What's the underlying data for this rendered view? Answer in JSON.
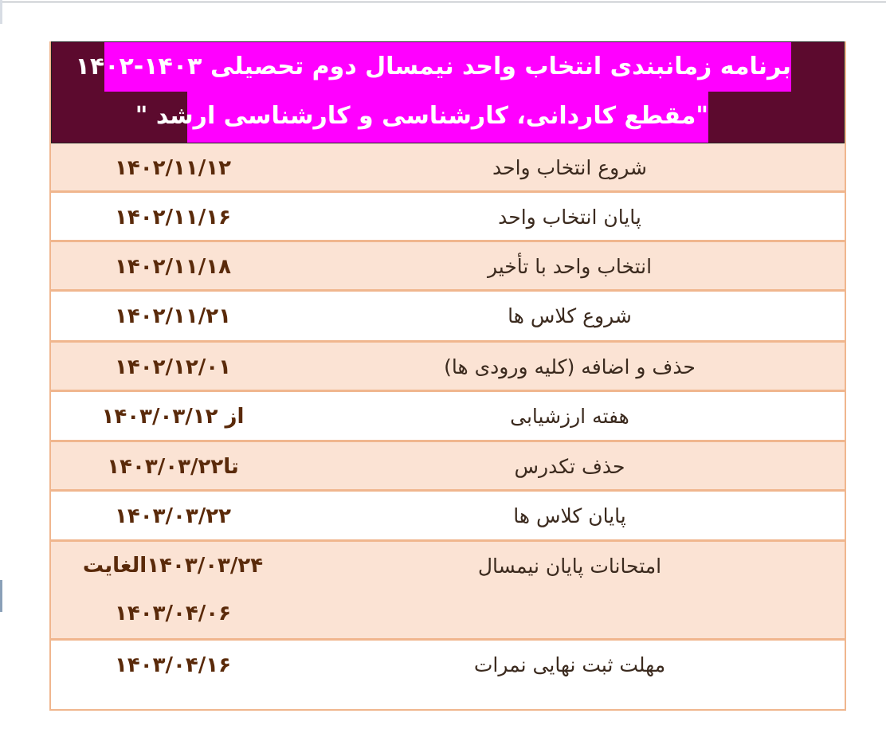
{
  "header": {
    "line1": "برنامه زمانبندی انتخاب واحد نیمسال دوم تحصیلی ۱۴۰۳-۱۴۰۲",
    "line2": "\"مقطع کاردانی، کارشناسی و کارشناسی ارشد \""
  },
  "rows": [
    {
      "label": "شروع انتخاب واحد",
      "date": "۱۴۰۲/۱۱/۱۲"
    },
    {
      "label": "پایان انتخاب واحد",
      "date": "۱۴۰۲/۱۱/۱۶"
    },
    {
      "label": "انتخاب واحد با تأخیر",
      "date": "۱۴۰۲/۱۱/۱۸"
    },
    {
      "label": "شروع کلاس ها",
      "date": "۱۴۰۲/۱۱/۲۱"
    },
    {
      "label": "حذف و اضافه (کلیه ورودی ها)",
      "date": "۱۴۰۲/۱۲/۰۱"
    },
    {
      "label": "هفته ارزشیابی",
      "date": "از ۱۴۰۳/۰۳/۱۲"
    },
    {
      "label": "حذف تکدرس",
      "date": "تا۱۴۰۳/۰۳/۲۲"
    },
    {
      "label": "پایان کلاس ها",
      "date": "۱۴۰۳/۰۳/۲۲"
    },
    {
      "label": "امتحانات پایان نیمسال",
      "date": "۱۴۰۳/۰۳/۲۴الغایت",
      "date2": "۱۴۰۳/۰۴/۰۶"
    },
    {
      "label": "مهلت ثبت نهایی نمرات",
      "date": "۱۴۰۳/۰۴/۱۶"
    }
  ],
  "colors": {
    "header_bg": "#5c0a2e",
    "title_highlight": "#ff00ff",
    "row_alt": "#fbe3d4",
    "border": "#f0b68e"
  }
}
